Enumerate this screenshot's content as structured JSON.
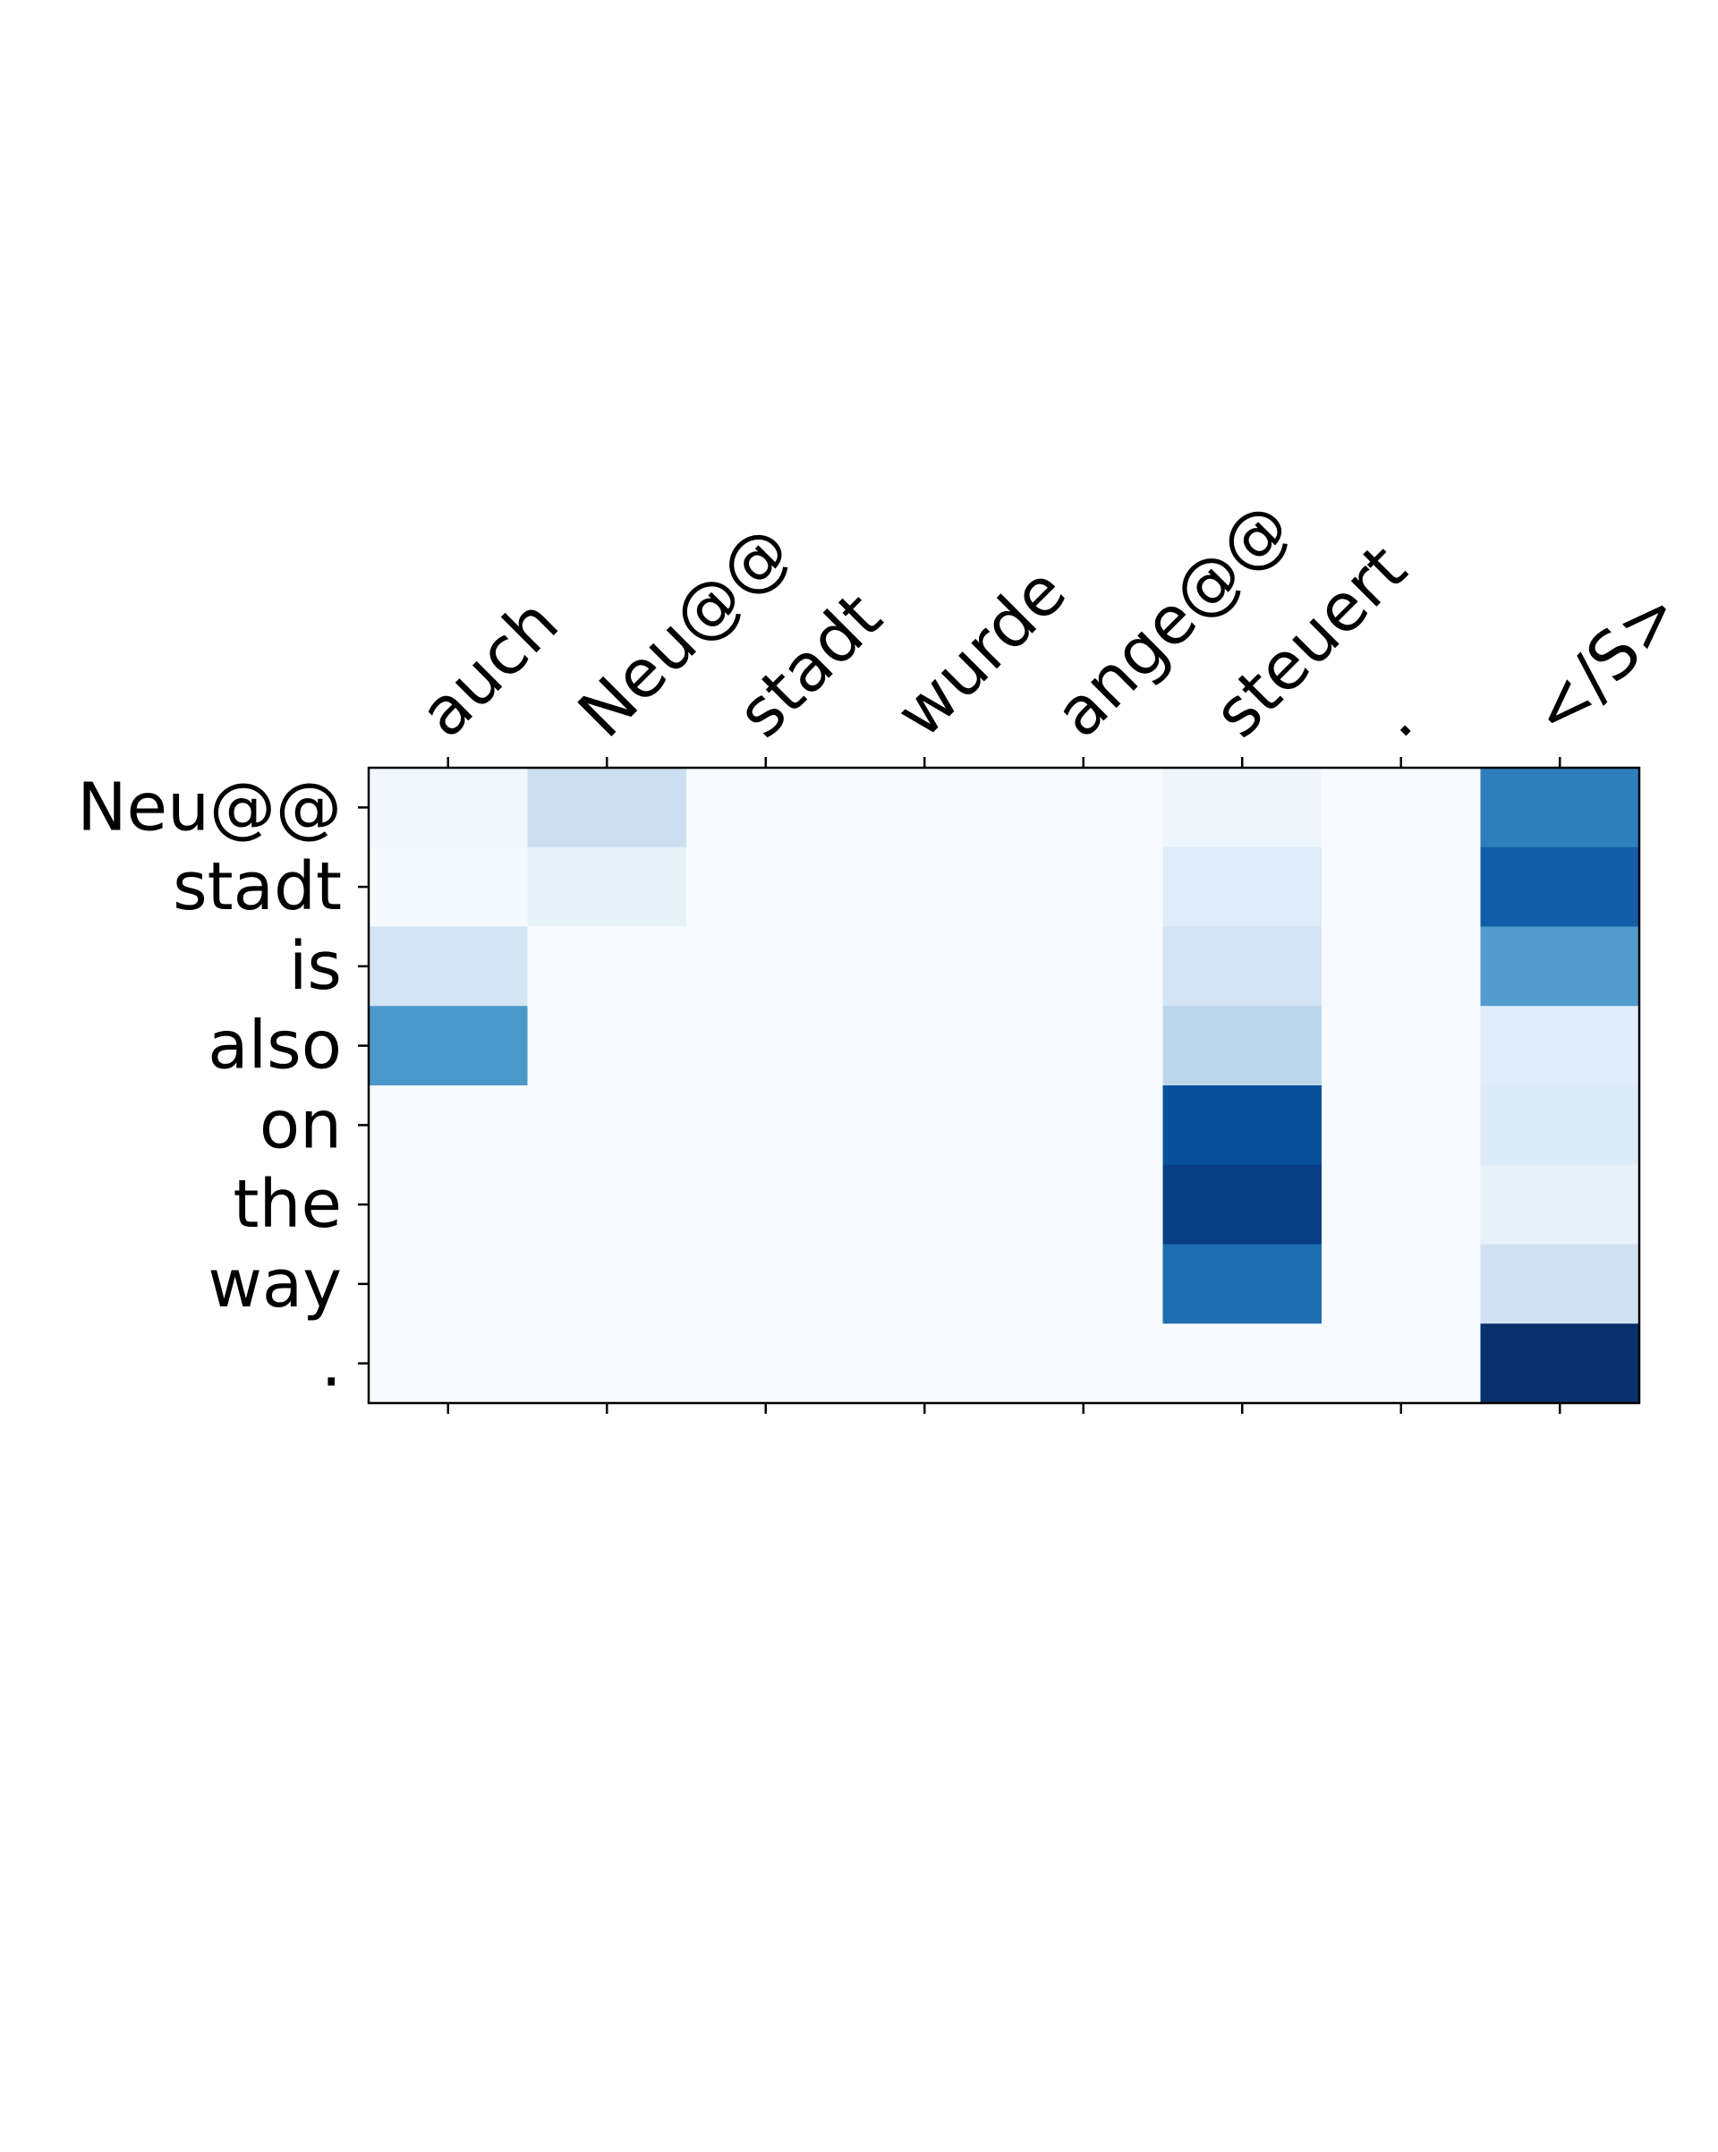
{
  "chart_data": {
    "type": "heatmap",
    "title": "",
    "xlabel": "",
    "ylabel": "",
    "x_tick_labels": [
      "auch",
      "Neu@@",
      "stadt",
      "wurde",
      "ange@@",
      "steuert",
      ".",
      "</S>"
    ],
    "y_tick_labels": [
      "Neu@@",
      "stadt",
      "is",
      "also",
      "on",
      "the",
      "way",
      "."
    ],
    "x_ticks_position": "top",
    "colormap": "Blues",
    "colormap_stops": [
      "#f7fbff",
      "#deebf7",
      "#c6dbef",
      "#9ecae1",
      "#6baed6",
      "#4292c6",
      "#2171b5",
      "#08519c",
      "#08306b"
    ],
    "value_range": [
      0,
      1
    ],
    "grid": false,
    "values": [
      [
        0.03,
        0.22,
        0.0,
        0.0,
        0.0,
        0.04,
        0.0,
        0.7
      ],
      [
        0.01,
        0.08,
        0.0,
        0.0,
        0.0,
        0.12,
        0.0,
        0.82
      ],
      [
        0.18,
        0.0,
        0.0,
        0.0,
        0.0,
        0.18,
        0.0,
        0.58
      ],
      [
        0.6,
        0.0,
        0.0,
        0.0,
        0.0,
        0.28,
        0.0,
        0.11
      ],
      [
        0.0,
        0.0,
        0.0,
        0.0,
        0.0,
        0.88,
        0.0,
        0.13
      ],
      [
        0.0,
        0.0,
        0.0,
        0.0,
        0.0,
        0.94,
        0.0,
        0.08
      ],
      [
        0.0,
        0.0,
        0.0,
        0.0,
        0.0,
        0.76,
        0.0,
        0.2
      ],
      [
        0.0,
        0.0,
        0.0,
        0.0,
        0.0,
        0.0,
        0.0,
        1.0
      ]
    ]
  }
}
